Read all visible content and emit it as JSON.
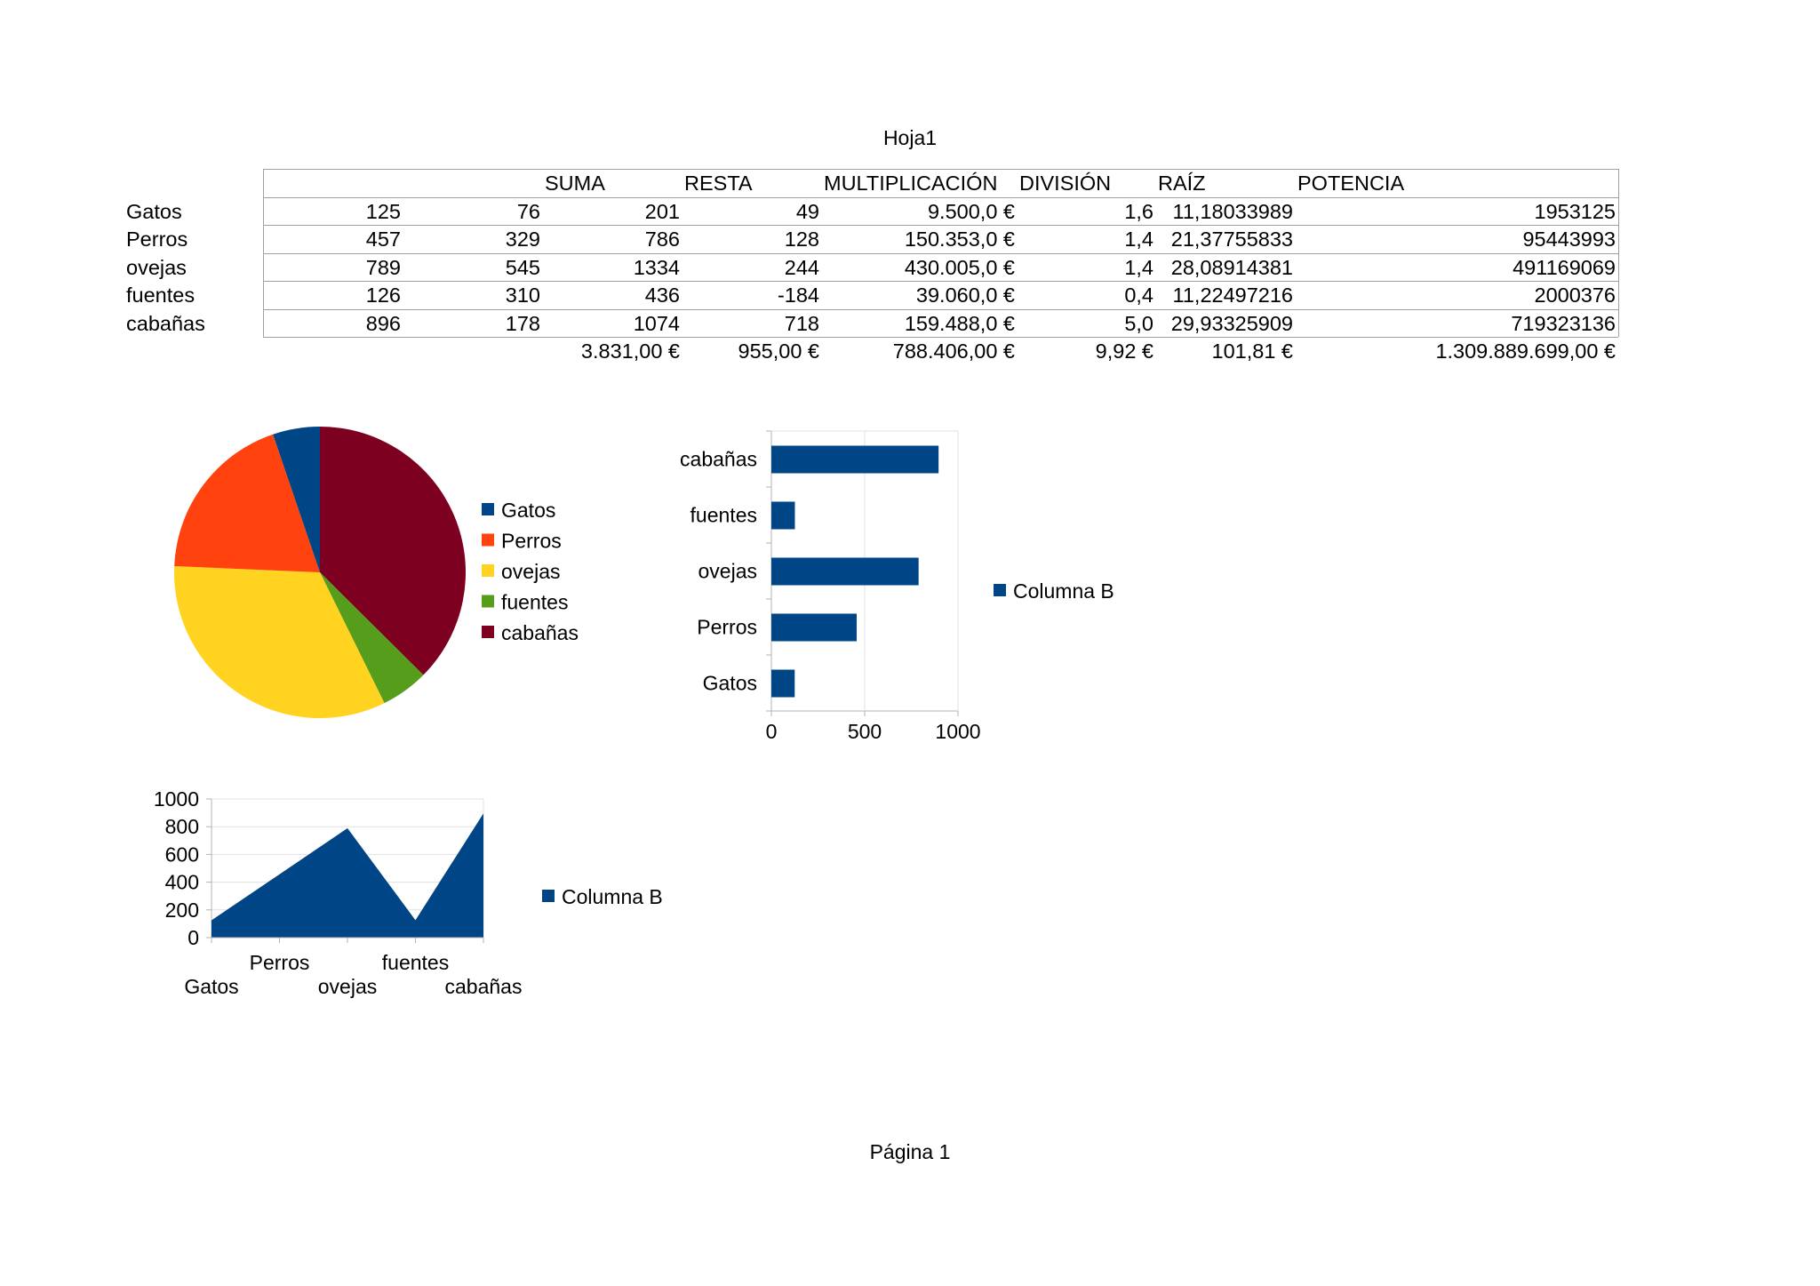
{
  "page": {
    "header": "Hoja1",
    "footer": "Página 1"
  },
  "table": {
    "headers": [
      "",
      "",
      "SUMA",
      "RESTA",
      "MULTIPLICACIÓN",
      "DIVISIÓN",
      "RAÍZ",
      "POTENCIA"
    ],
    "rows": [
      {
        "label": "Gatos",
        "b": "125",
        "c": "76",
        "suma": "201",
        "resta": "49",
        "mult": "9.500,0 €",
        "div": "1,6",
        "raiz": "11,18033989",
        "pot": "1953125"
      },
      {
        "label": "Perros",
        "b": "457",
        "c": "329",
        "suma": "786",
        "resta": "128",
        "mult": "150.353,0 €",
        "div": "1,4",
        "raiz": "21,37755833",
        "pot": "95443993"
      },
      {
        "label": "ovejas",
        "b": "789",
        "c": "545",
        "suma": "1334",
        "resta": "244",
        "mult": "430.005,0 €",
        "div": "1,4",
        "raiz": "28,08914381",
        "pot": "491169069"
      },
      {
        "label": "fuentes",
        "b": "126",
        "c": "310",
        "suma": "436",
        "resta": "-184",
        "mult": "39.060,0 €",
        "div": "0,4",
        "raiz": "11,22497216",
        "pot": "2000376"
      },
      {
        "label": "cabañas",
        "b": "896",
        "c": "178",
        "suma": "1074",
        "resta": "718",
        "mult": "159.488,0 €",
        "div": "5,0",
        "raiz": "29,93325909",
        "pot": "719323136"
      }
    ],
    "totals": {
      "suma": "3.831,00 €",
      "resta": "955,00 €",
      "mult": "788.406,00 €",
      "div": "9,92 €",
      "raiz": "101,81 €",
      "pot": "1.309.889.699,00 €"
    }
  },
  "chart_data": [
    {
      "type": "pie",
      "categories": [
        "Gatos",
        "Perros",
        "ovejas",
        "fuentes",
        "cabañas"
      ],
      "values": [
        125,
        457,
        789,
        126,
        896
      ],
      "colors": [
        "#004586",
        "#ff420e",
        "#ffd320",
        "#579d1c",
        "#7e0021"
      ],
      "legend": "right"
    },
    {
      "type": "bar",
      "orientation": "horizontal",
      "categories": [
        "Gatos",
        "Perros",
        "ovejas",
        "fuentes",
        "cabañas"
      ],
      "series": [
        {
          "name": "Columna B",
          "values": [
            125,
            457,
            789,
            126,
            896
          ]
        }
      ],
      "xlim": [
        0,
        1000
      ],
      "xticks": [
        "0",
        "500",
        "1000"
      ],
      "grid": true,
      "color": "#004586",
      "legend": "right"
    },
    {
      "type": "area",
      "categories": [
        "Gatos",
        "Perros",
        "ovejas",
        "fuentes",
        "cabañas"
      ],
      "series": [
        {
          "name": "Columna B",
          "values": [
            125,
            457,
            789,
            126,
            896
          ]
        }
      ],
      "ylim": [
        0,
        1000
      ],
      "yticks": [
        "0",
        "200",
        "400",
        "600",
        "800",
        "1000"
      ],
      "grid": true,
      "color": "#004586",
      "legend": "right"
    }
  ]
}
